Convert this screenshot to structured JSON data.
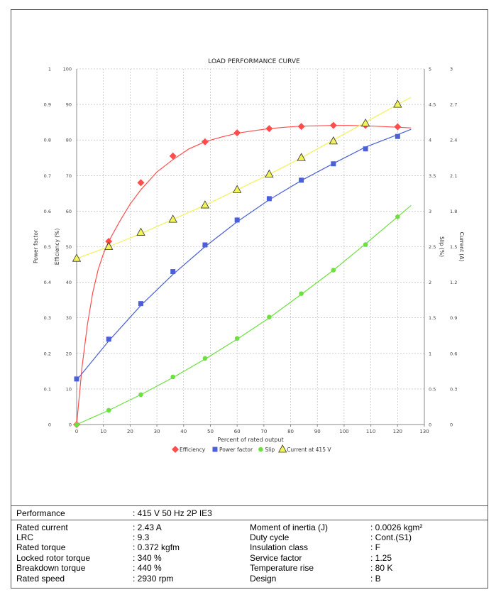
{
  "chart_data": {
    "type": "line",
    "title": "LOAD PERFORMANCE CURVE",
    "xlabel": "Percent of rated output",
    "xlim": [
      0,
      130
    ],
    "x_ticks": [
      0,
      10,
      20,
      30,
      40,
      50,
      60,
      70,
      80,
      90,
      100,
      110,
      120,
      130
    ],
    "grid": true,
    "legend_position": "bottom",
    "axes": {
      "power_factor": {
        "label": "Power factor",
        "side": "left-outer",
        "lim": [
          0,
          1
        ],
        "ticks": [
          "0",
          "0.1",
          "0.2",
          "0.3",
          "0.4",
          "0.5",
          "0.6",
          "0.7",
          "0.8",
          "0.9",
          "1"
        ]
      },
      "efficiency": {
        "label": "Efficiency (%)",
        "side": "left-inner",
        "lim": [
          0,
          100
        ],
        "ticks": [
          "0",
          "10",
          "20",
          "30",
          "40",
          "50",
          "60",
          "70",
          "80",
          "90",
          "100"
        ]
      },
      "slip": {
        "label": "Slip (%)",
        "side": "right-inner",
        "lim": [
          0,
          5
        ],
        "ticks": [
          "0",
          "0.5",
          "1",
          "1.5",
          "2",
          "2.5",
          "3",
          "3.5",
          "4",
          "4.5",
          "5"
        ]
      },
      "current": {
        "label": "Current (A)",
        "side": "right-outer",
        "lim": [
          0,
          3
        ],
        "ticks": [
          "0",
          "0.3",
          "0.6",
          "0.9",
          "1.2",
          "1.5",
          "1.8",
          "2.1",
          "2.4",
          "2.7",
          "3"
        ]
      }
    },
    "series": [
      {
        "name": "Efficiency",
        "axis": "efficiency",
        "color": "#ff4d4d",
        "marker": "diamond",
        "x": [
          0,
          12,
          24,
          36,
          48,
          60,
          72,
          84,
          96,
          108,
          120
        ],
        "values": [
          0,
          51.5,
          68,
          75.5,
          79.5,
          82,
          83.2,
          83.8,
          84.1,
          84.1,
          83.7
        ],
        "curve_x": [
          0,
          2,
          4,
          6,
          8,
          10,
          12,
          16,
          20,
          24,
          30,
          36,
          42,
          48,
          54,
          60,
          66,
          72,
          78,
          84,
          90,
          96,
          102,
          108,
          114,
          120,
          125
        ],
        "curve_y": [
          0,
          16,
          28,
          37,
          43.5,
          48,
          51.5,
          57,
          62,
          66,
          71,
          74.5,
          77.5,
          79.5,
          80.8,
          81.9,
          82.6,
          83.2,
          83.6,
          83.9,
          84.0,
          84.1,
          84.1,
          84.0,
          83.8,
          83.6,
          83.4
        ]
      },
      {
        "name": "Power factor",
        "axis": "power_factor",
        "color": "#4a5fd8",
        "marker": "square",
        "x": [
          0,
          12,
          24,
          36,
          48,
          60,
          72,
          84,
          96,
          108,
          120
        ],
        "values": [
          0.128,
          0.24,
          0.34,
          0.43,
          0.505,
          0.575,
          0.635,
          0.687,
          0.733,
          0.775,
          0.81
        ],
        "curve_x": [
          0,
          12,
          24,
          36,
          48,
          60,
          72,
          84,
          96,
          108,
          120,
          125
        ],
        "curve_y": [
          0.125,
          0.235,
          0.335,
          0.422,
          0.5,
          0.57,
          0.632,
          0.686,
          0.734,
          0.78,
          0.815,
          0.83
        ]
      },
      {
        "name": "Slip",
        "axis": "slip",
        "color": "#6ce040",
        "marker": "circle",
        "x": [
          0,
          12,
          24,
          36,
          48,
          60,
          72,
          84,
          96,
          108,
          120
        ],
        "values": [
          0,
          0.2,
          0.42,
          0.67,
          0.93,
          1.21,
          1.51,
          1.84,
          2.17,
          2.53,
          2.92
        ],
        "curve_x": [
          0,
          12,
          24,
          36,
          48,
          60,
          72,
          84,
          96,
          108,
          120,
          125
        ],
        "curve_y": [
          0,
          0.2,
          0.42,
          0.66,
          0.92,
          1.2,
          1.5,
          1.83,
          2.17,
          2.54,
          2.92,
          3.08
        ]
      },
      {
        "name": "Current at 415 V",
        "axis": "current",
        "color": "#f2f25a",
        "marker": "triangle",
        "x": [
          0,
          12,
          24,
          36,
          48,
          60,
          72,
          84,
          96,
          108,
          120
        ],
        "values": [
          1.4,
          1.5,
          1.62,
          1.73,
          1.85,
          1.98,
          2.11,
          2.25,
          2.39,
          2.54,
          2.7
        ],
        "curve_x": [
          0,
          12,
          24,
          36,
          48,
          60,
          72,
          84,
          96,
          108,
          120,
          125
        ],
        "curve_y": [
          1.4,
          1.5,
          1.61,
          1.73,
          1.85,
          1.98,
          2.11,
          2.25,
          2.4,
          2.55,
          2.7,
          2.76
        ]
      }
    ]
  },
  "specs": {
    "header": {
      "label": "Performance",
      "value": ": 415 V 50 Hz 2P IE3"
    },
    "left": [
      {
        "label": "Rated current",
        "value": ": 2.43 A"
      },
      {
        "label": "LRC",
        "value": ": 9.3"
      },
      {
        "label": "Rated torque",
        "value": ": 0.372 kgfm"
      },
      {
        "label": "Locked rotor torque",
        "value": ": 340 %"
      },
      {
        "label": "Breakdown torque",
        "value": ": 440 %"
      },
      {
        "label": "Rated speed",
        "value": ": 2930 rpm"
      }
    ],
    "right": [
      {
        "label": "Moment of inertia (J)",
        "value": ": 0.0026 kgm²"
      },
      {
        "label": "Duty cycle",
        "value": ": Cont.(S1)"
      },
      {
        "label": "Insulation class",
        "value": ": F"
      },
      {
        "label": "Service factor",
        "value": ": 1.25"
      },
      {
        "label": "Temperature rise",
        "value": ": 80 K"
      },
      {
        "label": "Design",
        "value": ": B"
      }
    ]
  }
}
